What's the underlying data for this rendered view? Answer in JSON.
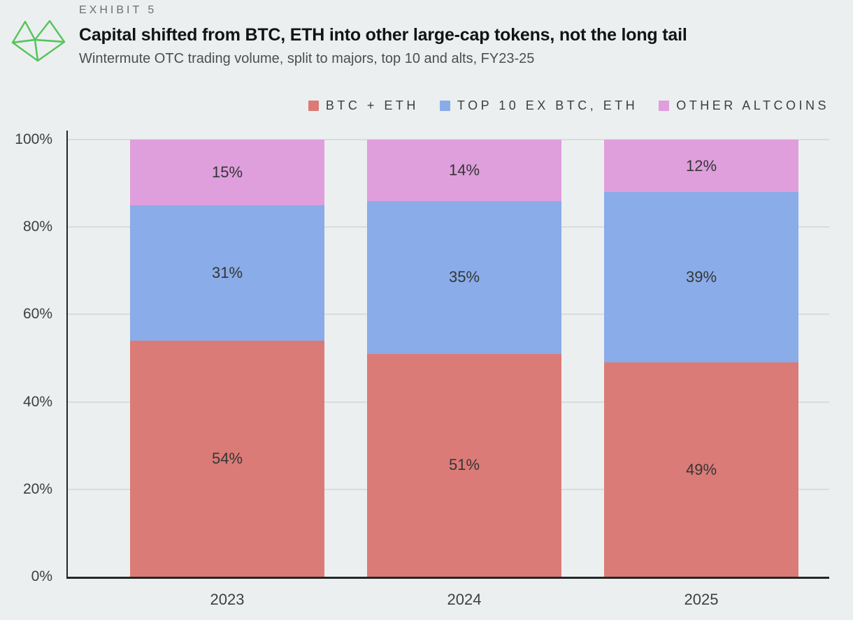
{
  "header": {
    "exhibit": "EXHIBIT 5",
    "title": "Capital shifted from BTC, ETH into other large-cap tokens, not the long tail",
    "subtitle": "Wintermute OTC trading volume, split to majors, top 10 and alts, FY23-25"
  },
  "logo": {
    "name": "wintermute-logo",
    "color": "#56c45c"
  },
  "colors": {
    "background": "#eceff0",
    "axis": "#232727",
    "gridline": "#d9dcdd",
    "bar_label": "#333635"
  },
  "chart_data": {
    "type": "bar",
    "stacked": true,
    "percent": true,
    "title": "Capital shifted from BTC, ETH into other large-cap tokens, not the long tail",
    "subtitle": "Wintermute OTC trading volume, split to majors, top 10 and alts, FY23-25",
    "categories": [
      "2023",
      "2024",
      "2025"
    ],
    "series": [
      {
        "name": "BTC + ETH",
        "color": "#db7b77",
        "values": [
          54,
          51,
          49
        ]
      },
      {
        "name": "TOP 10 EX BTC, ETH",
        "color": "#8aace8",
        "values": [
          31,
          35,
          39
        ]
      },
      {
        "name": "OTHER ALTCOINS",
        "color": "#df9edc",
        "values": [
          15,
          14,
          12
        ]
      }
    ],
    "value_suffix": "%",
    "xlabel": "",
    "ylabel": "",
    "ylim": [
      0,
      100
    ],
    "yticks": [
      0,
      20,
      40,
      60,
      80,
      100
    ],
    "grid": true,
    "legend_position": "top-right"
  }
}
